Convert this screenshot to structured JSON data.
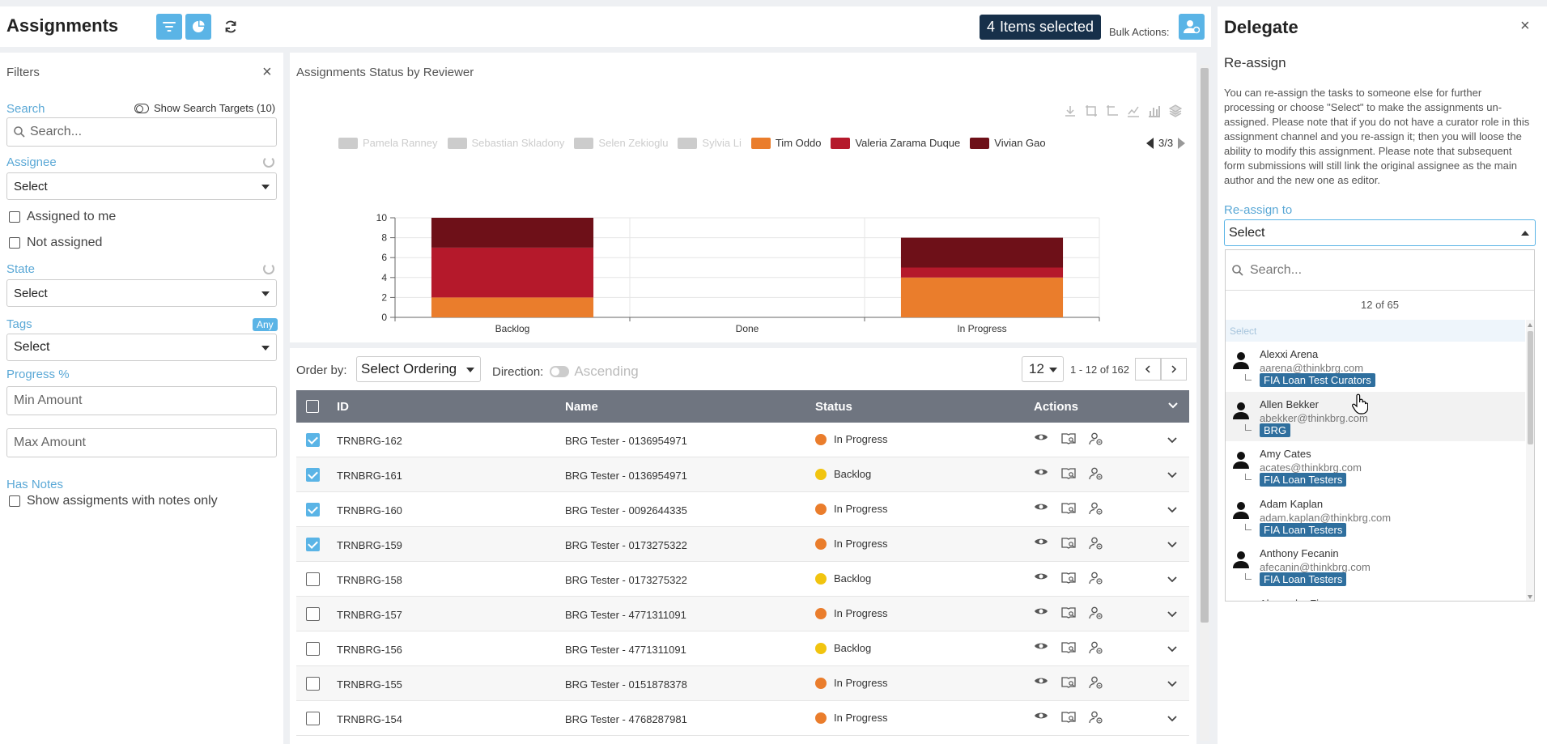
{
  "header": {
    "title": "Assignments",
    "items_selected_count": "4",
    "items_selected_label": "Items selected",
    "bulk_actions_label": "Bulk Actions:"
  },
  "filters": {
    "title": "Filters",
    "search_label": "Search",
    "show_search_targets": "Show Search Targets (10)",
    "search_placeholder": "Search...",
    "assignee_label": "Assignee",
    "assignee_value": "Select",
    "assigned_to_me": "Assigned to me",
    "not_assigned": "Not assigned",
    "state_label": "State",
    "state_value": "Select",
    "tags_label": "Tags",
    "tags_badge": "Any",
    "tags_value": "Select",
    "progress_label": "Progress %",
    "min_placeholder": "Min Amount",
    "max_placeholder": "Max Amount",
    "has_notes_label": "Has Notes",
    "notes_only": "Show assigments with notes only"
  },
  "chart_panel": {
    "title": "Assignments Status by Reviewer",
    "legend_page": "3/3"
  },
  "chart_data": {
    "type": "bar",
    "stacked": true,
    "categories": [
      "Backlog",
      "Done",
      "In Progress"
    ],
    "ylim": [
      0,
      10
    ],
    "yticks": [
      0,
      2,
      4,
      6,
      8,
      10
    ],
    "grid": true,
    "legend_placement": "top",
    "series": [
      {
        "name": "Pamela Ranney",
        "color": "#cccccc",
        "disabled": true,
        "values": [
          0,
          0,
          0
        ]
      },
      {
        "name": "Sebastian Skladony",
        "color": "#cccccc",
        "disabled": true,
        "values": [
          0,
          0,
          0
        ]
      },
      {
        "name": "Selen Zekioglu",
        "color": "#cccccc",
        "disabled": true,
        "values": [
          0,
          0,
          0
        ]
      },
      {
        "name": "Sylvia Li",
        "color": "#cccccc",
        "disabled": true,
        "values": [
          0,
          0,
          0
        ]
      },
      {
        "name": "Tim Oddo",
        "color": "#ea7d2c",
        "disabled": false,
        "values": [
          2,
          0,
          4
        ]
      },
      {
        "name": "Valeria Zarama Duque",
        "color": "#b5192b",
        "disabled": false,
        "values": [
          5,
          0,
          1
        ]
      },
      {
        "name": "Vivian Gao",
        "color": "#6e1018",
        "disabled": false,
        "values": [
          3,
          0,
          3
        ]
      }
    ]
  },
  "table": {
    "order_by_label": "Order by:",
    "ordering_value": "Select Ordering",
    "direction_label": "Direction:",
    "direction_value": "Ascending",
    "per_page": "12",
    "range": "1 - 12 of 162",
    "columns": {
      "id": "ID",
      "name": "Name",
      "status": "Status",
      "actions": "Actions"
    },
    "rows": [
      {
        "id": "TRNBRG-162",
        "name": "BRG Tester - 0136954971",
        "status": "In Progress",
        "color": "#ea7d2c",
        "checked": true
      },
      {
        "id": "TRNBRG-161",
        "name": "BRG Tester - 0136954971",
        "status": "Backlog",
        "color": "#f1c40f",
        "checked": true
      },
      {
        "id": "TRNBRG-160",
        "name": "BRG Tester - 0092644335",
        "status": "In Progress",
        "color": "#ea7d2c",
        "checked": true
      },
      {
        "id": "TRNBRG-159",
        "name": "BRG Tester - 0173275322",
        "status": "In Progress",
        "color": "#ea7d2c",
        "checked": true
      },
      {
        "id": "TRNBRG-158",
        "name": "BRG Tester - 0173275322",
        "status": "Backlog",
        "color": "#f1c40f",
        "checked": false
      },
      {
        "id": "TRNBRG-157",
        "name": "BRG Tester - 4771311091",
        "status": "In Progress",
        "color": "#ea7d2c",
        "checked": false
      },
      {
        "id": "TRNBRG-156",
        "name": "BRG Tester - 4771311091",
        "status": "Backlog",
        "color": "#f1c40f",
        "checked": false
      },
      {
        "id": "TRNBRG-155",
        "name": "BRG Tester - 0151878378",
        "status": "In Progress",
        "color": "#ea7d2c",
        "checked": false
      },
      {
        "id": "TRNBRG-154",
        "name": "BRG Tester - 4768287981",
        "status": "In Progress",
        "color": "#ea7d2c",
        "checked": false
      }
    ]
  },
  "delegate": {
    "title": "Delegate",
    "subtitle": "Re-assign",
    "description": "You can re-assign the tasks to someone else for further processing or choose \"Select\" to make the assignments un-assigned. Please note that if you do not have a curator role in this assignment channel and you re-assign it; then you will loose the ability to modify this assignment. Please note that subsequent form submissions will still link the original assignee as the main author and the new one as editor.",
    "reassign_label": "Re-assign to",
    "reassign_value": "Select",
    "search_placeholder": "Search...",
    "count_text": "12  of  65",
    "hint": "Select",
    "people": [
      {
        "name": "Alexxi Arena",
        "email": "aarena@thinkbrg.com",
        "tag": "FIA Loan Test Curators"
      },
      {
        "name": "Allen Bekker",
        "email": "abekker@thinkbrg.com",
        "tag": "BRG"
      },
      {
        "name": "Amy Cates",
        "email": "acates@thinkbrg.com",
        "tag": "FIA Loan Testers"
      },
      {
        "name": "Adam Kaplan",
        "email": "adam.kaplan@thinkbrg.com",
        "tag": "FIA Loan Testers"
      },
      {
        "name": "Anthony Fecanin",
        "email": "afecanin@thinkbrg.com",
        "tag": "FIA Loan Testers"
      },
      {
        "name": "Alexandra Fierro",
        "email": "",
        "tag": ""
      }
    ]
  }
}
